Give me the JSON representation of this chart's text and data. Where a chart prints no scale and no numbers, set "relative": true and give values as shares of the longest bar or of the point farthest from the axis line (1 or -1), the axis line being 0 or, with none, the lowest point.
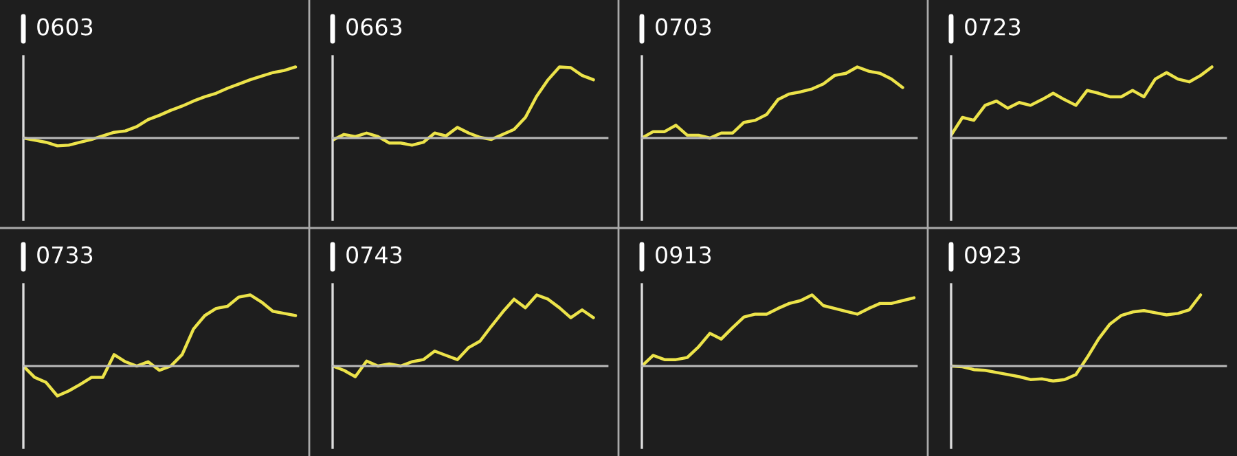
{
  "chart_data": [
    {
      "type": "line",
      "title": "0603",
      "relative": true,
      "categories": [
        null,
        null,
        null,
        null,
        null,
        null,
        null,
        null,
        null,
        null,
        null,
        null,
        null,
        null,
        null,
        null,
        null,
        null,
        null,
        null,
        null,
        null,
        null,
        null,
        null
      ],
      "series": [
        {
          "color": "#ece34a",
          "values": [
            0,
            -0.03,
            -0.06,
            -0.11,
            -0.1,
            -0.06,
            -0.02,
            0.03,
            0.08,
            0.1,
            0.16,
            0.26,
            0.32,
            0.39,
            0.45,
            0.52,
            0.58,
            0.63,
            0.7,
            0.76,
            0.82,
            0.87,
            0.92,
            0.95,
            1
          ]
        }
      ]
    },
    {
      "type": "line",
      "title": "0663",
      "relative": true,
      "categories": [
        null,
        null,
        null,
        null,
        null,
        null,
        null,
        null,
        null,
        null,
        null,
        null,
        null,
        null,
        null,
        null,
        null,
        null,
        null,
        null,
        null,
        null,
        null,
        null,
        null
      ],
      "series": [
        {
          "color": "#ece34a",
          "values": [
            -0.03,
            0.05,
            0.02,
            0.07,
            0.02,
            -0.07,
            -0.07,
            -0.1,
            -0.06,
            0.07,
            0.03,
            0.15,
            0.07,
            0.01,
            -0.02,
            0.05,
            0.12,
            0.29,
            0.59,
            0.82,
            1,
            0.99,
            0.88,
            0.82,
            null
          ]
        }
      ]
    },
    {
      "type": "line",
      "title": "0703",
      "relative": true,
      "categories": [
        null,
        null,
        null,
        null,
        null,
        null,
        null,
        null,
        null,
        null,
        null,
        null,
        null,
        null,
        null,
        null,
        null,
        null,
        null,
        null,
        null,
        null,
        null,
        null,
        null
      ],
      "series": [
        {
          "color": "#ece34a",
          "values": [
            0,
            0.09,
            0.09,
            0.18,
            0.04,
            0.04,
            0,
            0.07,
            0.07,
            0.22,
            0.25,
            0.33,
            0.54,
            0.62,
            0.65,
            0.69,
            0.76,
            0.88,
            0.91,
            1,
            0.94,
            0.91,
            0.83,
            0.71,
            null
          ]
        }
      ]
    },
    {
      "type": "line",
      "title": "0723",
      "relative": true,
      "categories": [
        null,
        null,
        null,
        null,
        null,
        null,
        null,
        null,
        null,
        null,
        null,
        null,
        null,
        null,
        null,
        null,
        null,
        null,
        null,
        null,
        null,
        null,
        null,
        null,
        null
      ],
      "series": [
        {
          "color": "#ece34a",
          "values": [
            0.04,
            0.29,
            0.25,
            0.46,
            0.52,
            0.42,
            0.5,
            0.46,
            0.54,
            0.63,
            0.54,
            0.46,
            0.67,
            0.63,
            0.58,
            0.58,
            0.67,
            0.58,
            0.83,
            0.92,
            0.83,
            0.79,
            0.88,
            1,
            null
          ]
        }
      ]
    },
    {
      "type": "line",
      "title": "0733",
      "relative": true,
      "categories": [
        null,
        null,
        null,
        null,
        null,
        null,
        null,
        null,
        null,
        null,
        null,
        null,
        null,
        null,
        null,
        null,
        null,
        null,
        null,
        null,
        null,
        null,
        null,
        null,
        null
      ],
      "series": [
        {
          "color": "#ece34a",
          "values": [
            0,
            -0.16,
            -0.23,
            -0.42,
            -0.35,
            -0.26,
            -0.16,
            -0.16,
            0.16,
            0.06,
            0,
            0.06,
            -0.06,
            0,
            0.16,
            0.52,
            0.71,
            0.81,
            0.84,
            0.97,
            1,
            0.9,
            0.77,
            0.74,
            0.71
          ]
        }
      ]
    },
    {
      "type": "line",
      "title": "0743",
      "relative": true,
      "categories": [
        null,
        null,
        null,
        null,
        null,
        null,
        null,
        null,
        null,
        null,
        null,
        null,
        null,
        null,
        null,
        null,
        null,
        null,
        null,
        null,
        null,
        null,
        null,
        null,
        null
      ],
      "series": [
        {
          "color": "#ece34a",
          "values": [
            0,
            -0.06,
            -0.15,
            0.07,
            0,
            0.03,
            0,
            0.06,
            0.09,
            0.21,
            0.15,
            0.09,
            0.26,
            0.35,
            0.56,
            0.76,
            0.94,
            0.82,
            1,
            0.94,
            0.82,
            0.68,
            0.79,
            0.68,
            null
          ]
        }
      ]
    },
    {
      "type": "line",
      "title": "0913",
      "relative": true,
      "categories": [
        null,
        null,
        null,
        null,
        null,
        null,
        null,
        null,
        null,
        null,
        null,
        null,
        null,
        null,
        null,
        null,
        null,
        null,
        null,
        null,
        null,
        null,
        null,
        null,
        null
      ],
      "series": [
        {
          "color": "#ece34a",
          "values": [
            0,
            0.15,
            0.09,
            0.09,
            0.12,
            0.27,
            0.46,
            0.38,
            0.54,
            0.69,
            0.73,
            0.73,
            0.81,
            0.88,
            0.92,
            1,
            0.85,
            0.81,
            0.77,
            0.73,
            0.81,
            0.88,
            0.88,
            0.92,
            0.96
          ]
        }
      ]
    },
    {
      "type": "line",
      "title": "0923",
      "relative": true,
      "categories": [
        null,
        null,
        null,
        null,
        null,
        null,
        null,
        null,
        null,
        null,
        null,
        null,
        null,
        null,
        null,
        null,
        null,
        null,
        null,
        null,
        null,
        null,
        null,
        null,
        null
      ],
      "series": [
        {
          "color": "#ece34a",
          "values": [
            0,
            -0.01,
            -0.05,
            -0.06,
            -0.09,
            -0.12,
            -0.15,
            -0.19,
            -0.18,
            -0.21,
            -0.19,
            -0.12,
            0.12,
            0.38,
            0.59,
            0.71,
            0.76,
            0.78,
            0.75,
            0.72,
            0.74,
            0.79,
            1,
            null,
            null
          ]
        }
      ]
    }
  ]
}
